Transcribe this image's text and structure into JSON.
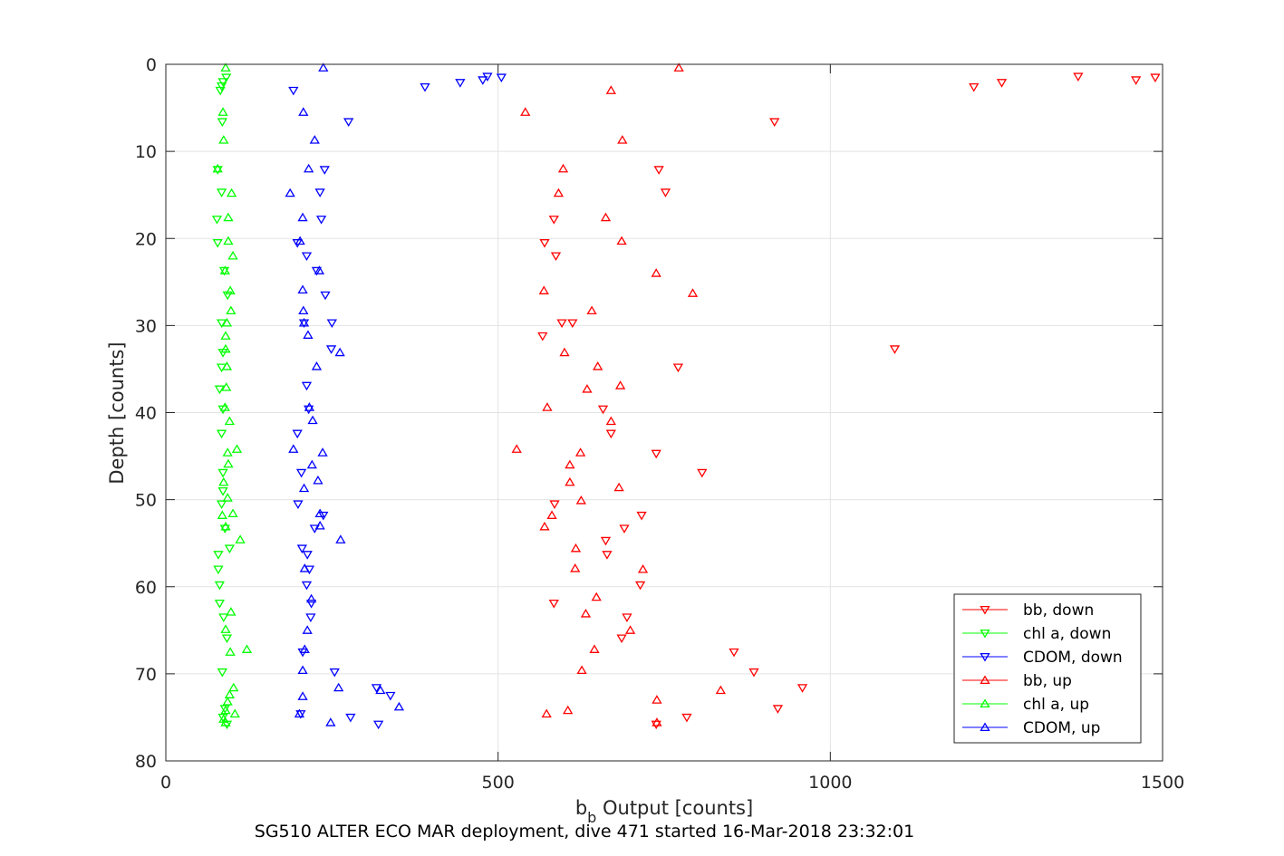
{
  "chart_data": {
    "type": "scatter",
    "title": "",
    "xlabel_base": "b",
    "xlabel_sub": "b",
    "xlabel_rest": " Output [counts]",
    "ylabel": "Depth [counts]",
    "caption": "SG510 ALTER ECO MAR deployment, dive 471 started 16-Mar-2018 23:32:01",
    "xlim": [
      0,
      1500
    ],
    "ylim": [
      0,
      80
    ],
    "y_reversed": true,
    "grid": true,
    "x_ticks": [
      0,
      500,
      1000,
      1500
    ],
    "y_ticks": [
      0,
      10,
      20,
      30,
      40,
      50,
      60,
      70,
      80
    ],
    "legend_location": "bottom-right",
    "series": [
      {
        "name": "bb, down",
        "color": "#ff0000",
        "marker": "triangle-down",
        "points": [
          [
            1489,
            1.5
          ],
          [
            1460,
            1.8
          ],
          [
            1373,
            1.4
          ],
          [
            1258,
            2.1
          ],
          [
            1216,
            2.6
          ],
          [
            916,
            6.6
          ],
          [
            742,
            12.1
          ],
          [
            752,
            14.7
          ],
          [
            584,
            17.8
          ],
          [
            570,
            20.5
          ],
          [
            587,
            22.0
          ],
          [
            596,
            29.7
          ],
          [
            612,
            29.7
          ],
          [
            567,
            31.2
          ],
          [
            1097,
            32.7
          ],
          [
            771,
            34.8
          ],
          [
            658,
            39.6
          ],
          [
            670,
            42.4
          ],
          [
            738,
            44.7
          ],
          [
            807,
            46.9
          ],
          [
            585,
            50.5
          ],
          [
            690,
            53.3
          ],
          [
            716,
            51.8
          ],
          [
            662,
            54.7
          ],
          [
            664,
            56.3
          ],
          [
            714,
            59.8
          ],
          [
            584,
            61.9
          ],
          [
            694,
            63.5
          ],
          [
            686,
            65.9
          ],
          [
            855,
            67.5
          ],
          [
            885,
            69.8
          ],
          [
            958,
            71.6
          ],
          [
            921,
            74.0
          ],
          [
            784,
            75.0
          ],
          [
            738,
            75.8
          ]
        ]
      },
      {
        "name": "chl a, down",
        "color": "#00ff00",
        "marker": "triangle-down",
        "points": [
          [
            91,
            1.5
          ],
          [
            86,
            2.0
          ],
          [
            84,
            2.5
          ],
          [
            82,
            3.0
          ],
          [
            85,
            6.6
          ],
          [
            78,
            12.1
          ],
          [
            84,
            14.7
          ],
          [
            77,
            17.8
          ],
          [
            78,
            20.5
          ],
          [
            88,
            23.7
          ],
          [
            93,
            26.5
          ],
          [
            84,
            29.7
          ],
          [
            86,
            33.1
          ],
          [
            84,
            34.8
          ],
          [
            81,
            37.3
          ],
          [
            86,
            39.6
          ],
          [
            84,
            42.4
          ],
          [
            86,
            46.9
          ],
          [
            86,
            49.0
          ],
          [
            84,
            50.5
          ],
          [
            89,
            53.3
          ],
          [
            96,
            55.6
          ],
          [
            79,
            56.3
          ],
          [
            79,
            58.0
          ],
          [
            81,
            59.8
          ],
          [
            81,
            61.9
          ],
          [
            87,
            63.5
          ],
          [
            92,
            65.9
          ],
          [
            85,
            69.8
          ],
          [
            89,
            74.0
          ],
          [
            86,
            75.0
          ],
          [
            92,
            75.8
          ]
        ]
      },
      {
        "name": "CDOM, down",
        "color": "#0000ff",
        "marker": "triangle-down",
        "points": [
          [
            505,
            1.5
          ],
          [
            484,
            1.4
          ],
          [
            477,
            1.8
          ],
          [
            443,
            2.1
          ],
          [
            390,
            2.6
          ],
          [
            192,
            3.0
          ],
          [
            275,
            6.6
          ],
          [
            239,
            12.1
          ],
          [
            232,
            14.7
          ],
          [
            234,
            17.8
          ],
          [
            198,
            20.5
          ],
          [
            212,
            22.0
          ],
          [
            227,
            23.7
          ],
          [
            240,
            26.5
          ],
          [
            250,
            29.7
          ],
          [
            208,
            29.7
          ],
          [
            249,
            32.7
          ],
          [
            212,
            36.9
          ],
          [
            215,
            39.6
          ],
          [
            198,
            42.4
          ],
          [
            204,
            46.9
          ],
          [
            199,
            50.5
          ],
          [
            237,
            51.8
          ],
          [
            224,
            53.3
          ],
          [
            205,
            55.6
          ],
          [
            213,
            56.3
          ],
          [
            216,
            58.0
          ],
          [
            212,
            59.8
          ],
          [
            219,
            61.9
          ],
          [
            218,
            63.5
          ],
          [
            206,
            67.5
          ],
          [
            254,
            69.8
          ],
          [
            317,
            71.6
          ],
          [
            338,
            72.5
          ],
          [
            278,
            75.0
          ],
          [
            320,
            75.8
          ],
          [
            203,
            74.6
          ]
        ]
      },
      {
        "name": "bb, up",
        "color": "#ff0000",
        "marker": "triangle-up",
        "points": [
          [
            772,
            0.4
          ],
          [
            670,
            3.0
          ],
          [
            541,
            5.5
          ],
          [
            687,
            8.7
          ],
          [
            598,
            12.0
          ],
          [
            591,
            14.8
          ],
          [
            662,
            17.6
          ],
          [
            686,
            20.3
          ],
          [
            738,
            24.0
          ],
          [
            793,
            26.3
          ],
          [
            641,
            28.3
          ],
          [
            574,
            39.4
          ],
          [
            569,
            26.0
          ],
          [
            600,
            33.1
          ],
          [
            650,
            34.7
          ],
          [
            684,
            36.9
          ],
          [
            634,
            37.3
          ],
          [
            670,
            41.0
          ],
          [
            624,
            44.6
          ],
          [
            528,
            44.2
          ],
          [
            608,
            46.0
          ],
          [
            608,
            48.0
          ],
          [
            682,
            48.6
          ],
          [
            625,
            50.1
          ],
          [
            581,
            51.8
          ],
          [
            570,
            53.1
          ],
          [
            617,
            55.6
          ],
          [
            616,
            57.9
          ],
          [
            718,
            58.0
          ],
          [
            648,
            61.2
          ],
          [
            632,
            63.1
          ],
          [
            699,
            65.0
          ],
          [
            645,
            67.2
          ],
          [
            626,
            69.6
          ],
          [
            835,
            71.9
          ],
          [
            739,
            73.0
          ],
          [
            573,
            74.6
          ],
          [
            605,
            74.2
          ],
          [
            739,
            75.6
          ]
        ]
      },
      {
        "name": "chl a, up",
        "color": "#00ff00",
        "marker": "triangle-up",
        "points": [
          [
            90,
            0.4
          ],
          [
            86,
            5.5
          ],
          [
            87,
            8.7
          ],
          [
            78,
            12.0
          ],
          [
            99,
            14.8
          ],
          [
            94,
            17.6
          ],
          [
            94,
            20.3
          ],
          [
            101,
            22.0
          ],
          [
            89,
            23.7
          ],
          [
            97,
            26.0
          ],
          [
            98,
            28.3
          ],
          [
            92,
            29.7
          ],
          [
            90,
            31.2
          ],
          [
            90,
            32.7
          ],
          [
            92,
            34.7
          ],
          [
            91,
            37.1
          ],
          [
            89,
            39.4
          ],
          [
            96,
            41.0
          ],
          [
            107,
            44.2
          ],
          [
            93,
            44.6
          ],
          [
            94,
            45.9
          ],
          [
            87,
            48.0
          ],
          [
            93,
            49.8
          ],
          [
            101,
            51.6
          ],
          [
            85,
            51.8
          ],
          [
            90,
            53.1
          ],
          [
            112,
            54.6
          ],
          [
            98,
            62.9
          ],
          [
            90,
            64.9
          ],
          [
            122,
            67.2
          ],
          [
            97,
            67.5
          ],
          [
            102,
            71.6
          ],
          [
            96,
            72.4
          ],
          [
            93,
            73.2
          ],
          [
            90,
            74.2
          ],
          [
            104,
            74.6
          ],
          [
            90,
            75.6
          ],
          [
            87,
            75.2
          ]
        ]
      },
      {
        "name": "CDOM, up",
        "color": "#0000ff",
        "marker": "triangle-up",
        "points": [
          [
            237,
            0.4
          ],
          [
            207,
            5.5
          ],
          [
            224,
            8.7
          ],
          [
            215,
            12.0
          ],
          [
            187,
            14.8
          ],
          [
            206,
            17.6
          ],
          [
            202,
            20.3
          ],
          [
            231,
            23.7
          ],
          [
            206,
            25.9
          ],
          [
            207,
            28.3
          ],
          [
            227,
            34.7
          ],
          [
            208,
            29.7
          ],
          [
            214,
            31.1
          ],
          [
            262,
            33.1
          ],
          [
            216,
            39.4
          ],
          [
            221,
            40.9
          ],
          [
            236,
            44.6
          ],
          [
            192,
            44.2
          ],
          [
            220,
            46.0
          ],
          [
            229,
            47.8
          ],
          [
            208,
            48.7
          ],
          [
            232,
            51.6
          ],
          [
            232,
            53.0
          ],
          [
            263,
            54.6
          ],
          [
            209,
            57.9
          ],
          [
            219,
            61.4
          ],
          [
            213,
            65.0
          ],
          [
            209,
            67.2
          ],
          [
            206,
            69.6
          ],
          [
            260,
            71.6
          ],
          [
            206,
            72.6
          ],
          [
            323,
            71.9
          ],
          [
            351,
            73.8
          ],
          [
            201,
            74.6
          ],
          [
            248,
            75.6
          ]
        ]
      }
    ]
  }
}
